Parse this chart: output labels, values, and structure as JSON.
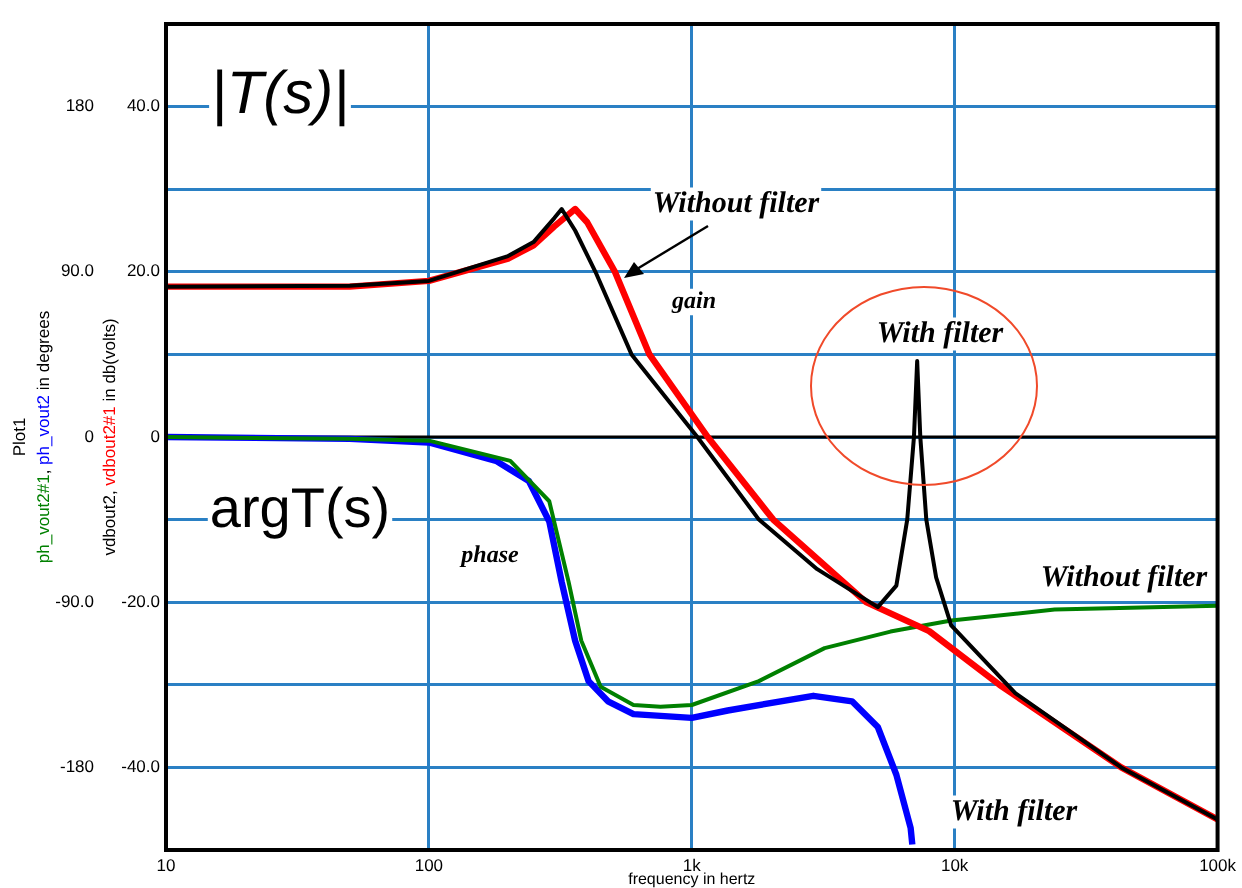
{
  "chart_data": {
    "type": "line",
    "title": "Plot1",
    "xlabel": "frequency in hertz",
    "ylabel": "vdbout2, vdbout2#1 in db(volts)",
    "y2label": "ph_vout2#1, ph_vout2 in degrees",
    "log": "x",
    "grid": true,
    "legend": false,
    "marker": "none",
    "line_style": "solid",
    "xlim": [
      10,
      100000
    ],
    "xticks": [
      10,
      100,
      {
        "value": 1000,
        "label": "1k"
      },
      {
        "value": 10000,
        "label": "10k"
      },
      {
        "value": 100000,
        "label": "100k"
      }
    ],
    "ylim": [
      -50,
      50
    ],
    "yticks": [
      {
        "value": -40,
        "label": "-40.0"
      },
      {
        "value": -30,
        "label": null
      },
      {
        "value": -20,
        "label": "-20.0"
      },
      {
        "value": -10,
        "label": null
      },
      0,
      {
        "value": 10,
        "label": null
      },
      {
        "value": 20,
        "label": "20.0"
      },
      {
        "value": 30,
        "label": null
      },
      {
        "value": 40,
        "label": "40.0"
      }
    ],
    "y2lim": [
      -225,
      225
    ],
    "y2ticks": [
      -180,
      {
        "value": -90,
        "label": "-90.0"
      },
      0,
      {
        "value": 90,
        "label": "90.0"
      },
      180
    ],
    "ref_lines": [
      {
        "axis": "y",
        "value": 0,
        "color": "#000000"
      }
    ],
    "series": [
      {
        "color": "#000000",
        "x": [
          10,
          50,
          100,
          200,
          250,
          300,
          320,
          360,
          430,
          590,
          1050,
          1800,
          3000,
          5100,
          6000,
          6600,
          7000,
          7200,
          7400,
          7800,
          8500,
          9700,
          17000,
          43000,
          100000
        ],
        "values": [
          18.2,
          18.3,
          18.9,
          21.9,
          23.6,
          26.5,
          27.6,
          25,
          20,
          10,
          0,
          -10,
          -16,
          -20.6,
          -18,
          -10,
          0,
          9.2,
          0,
          -10,
          -17,
          -22.8,
          -31,
          -40,
          -46.3
        ]
      },
      {
        "color": "#ff0000",
        "x": [
          10,
          50,
          100,
          200,
          250,
          300,
          360,
          400,
          510,
          690,
          1150,
          2040,
          4600,
          8000,
          14800,
          43000,
          100000
        ],
        "values": [
          18.2,
          18.2,
          18.9,
          21.6,
          23.2,
          25.5,
          27.6,
          26,
          20,
          10,
          0,
          -10,
          -20,
          -23.5,
          -30,
          -40,
          -46.3
        ]
      },
      {
        "color": "#008000",
        "axis": "y2",
        "x": [
          10,
          50,
          100,
          204,
          287,
          340,
          380,
          450,
          600,
          760,
          1000,
          1800,
          3200,
          5700,
          9700,
          24000,
          100000
        ],
        "values": [
          0,
          -1,
          -2,
          -13,
          -35,
          -79,
          -111,
          -136,
          -146,
          -147,
          -146,
          -133,
          -115,
          -106,
          -100,
          -94,
          -92
        ]
      },
      {
        "color": "#0000ff",
        "axis": "y2",
        "x": [
          10,
          50,
          100,
          180,
          240,
          287,
          320,
          360,
          405,
          480,
          600,
          1000,
          1370,
          2900,
          4070,
          5100,
          6000,
          6800,
          6900
        ],
        "values": [
          0,
          -1,
          -3,
          -13,
          -24,
          -46,
          -79,
          -111,
          -133,
          -144,
          -151,
          -153,
          -149,
          -141,
          -144,
          -158,
          -184,
          -213,
          -222
        ]
      }
    ],
    "annotations": [
      "|T(s)|",
      "argT(s)",
      "Without filter",
      "gain",
      "phase",
      "With filter",
      "Without filter",
      "With filter"
    ]
  }
}
